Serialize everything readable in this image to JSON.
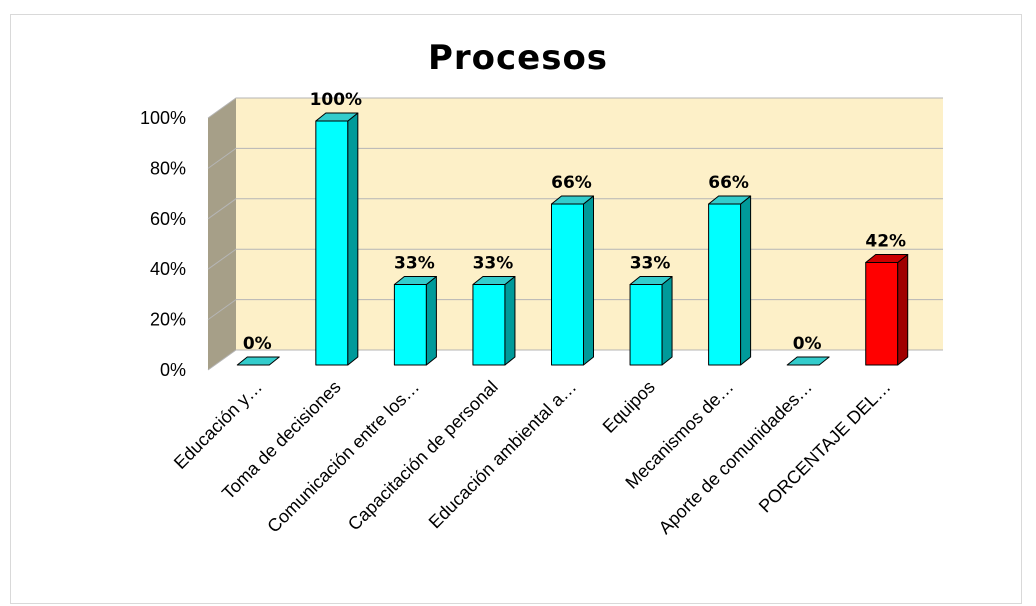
{
  "colors": {
    "plot_background": "#fdf0c8",
    "side_wall": "#a69f88",
    "gridline": "#b5b5b5",
    "bar_front": "#00ffff",
    "bar_side": "#009a9a",
    "bar_top": "#33cccc",
    "highlight_front": "#ff0000",
    "highlight_side": "#a00000",
    "highlight_top": "#cc0000"
  },
  "chart_data": {
    "type": "bar",
    "title": "Procesos",
    "xlabel": "",
    "ylabel": "",
    "ylim": [
      0,
      100
    ],
    "y_ticks": [
      "0%",
      "20%",
      "40%",
      "60%",
      "80%",
      "100%"
    ],
    "grid": true,
    "legend": "none",
    "three_d": true,
    "categories": [
      "Educación y…",
      "Toma de decisiones",
      "Comunicación entre los…",
      "Capacitación de personal",
      "Educación ambiental a…",
      "Equipos",
      "Mecanismos de…",
      "Aporte de comunidades…",
      "PORCENTAJE DEL…"
    ],
    "values": [
      0,
      100,
      33,
      33,
      66,
      33,
      66,
      0,
      42
    ],
    "data_labels": [
      "0%",
      "100%",
      "33%",
      "33%",
      "66%",
      "33%",
      "66%",
      "0%",
      "42%"
    ],
    "highlighted_index": 8
  }
}
